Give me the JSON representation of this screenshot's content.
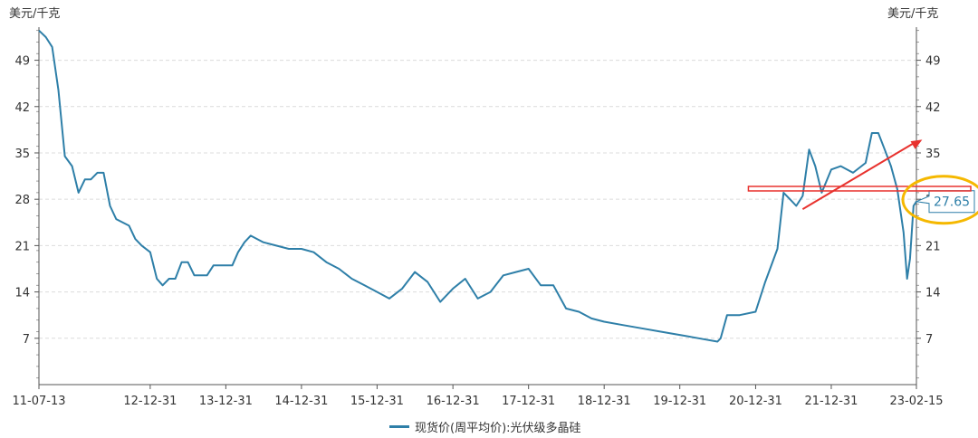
{
  "chart_data": {
    "type": "line",
    "y_unit_left": "美元/千克",
    "y_unit_right": "美元/千克",
    "ylim": [
      0,
      54
    ],
    "yticks": [
      7,
      14,
      21,
      28,
      35,
      42,
      49
    ],
    "grid": true,
    "x_tick_labels": [
      "11-07-13",
      "12-12-31",
      "13-12-31",
      "14-12-31",
      "15-12-31",
      "16-12-31",
      "17-12-31",
      "18-12-31",
      "19-12-31",
      "20-12-31",
      "21-12-31",
      "23-02-15"
    ],
    "legend_position": "bottom",
    "series": [
      {
        "name": "现货价(周平均价):光伏级多晶硅",
        "color": "#2e7fa8",
        "points": [
          [
            "11-07-13",
            53.5
          ],
          [
            "11-08-15",
            52.5
          ],
          [
            "11-09-15",
            51.0
          ],
          [
            "11-10-15",
            44.5
          ],
          [
            "11-11-15",
            34.5
          ],
          [
            "11-12-20",
            33.0
          ],
          [
            "12-01-20",
            29.0
          ],
          [
            "12-02-20",
            31.0
          ],
          [
            "12-03-20",
            31.0
          ],
          [
            "12-04-20",
            32.0
          ],
          [
            "12-05-20",
            32.0
          ],
          [
            "12-06-20",
            27.0
          ],
          [
            "12-07-20",
            25.0
          ],
          [
            "12-08-20",
            24.5
          ],
          [
            "12-09-20",
            24.0
          ],
          [
            "12-10-20",
            22.0
          ],
          [
            "12-11-20",
            21.0
          ],
          [
            "12-12-31",
            20.0
          ],
          [
            "13-02-01",
            16.0
          ],
          [
            "13-03-01",
            15.0
          ],
          [
            "13-04-01",
            16.0
          ],
          [
            "13-05-01",
            16.0
          ],
          [
            "13-06-01",
            18.5
          ],
          [
            "13-07-01",
            18.5
          ],
          [
            "13-08-01",
            16.5
          ],
          [
            "13-09-01",
            16.5
          ],
          [
            "13-10-01",
            16.5
          ],
          [
            "13-11-01",
            18.0
          ],
          [
            "13-12-01",
            18.0
          ],
          [
            "13-12-31",
            18.0
          ],
          [
            "14-01-31",
            18.0
          ],
          [
            "14-02-28",
            20.0
          ],
          [
            "14-03-31",
            21.5
          ],
          [
            "14-04-30",
            22.5
          ],
          [
            "14-05-31",
            22.0
          ],
          [
            "14-06-30",
            21.5
          ],
          [
            "14-08-31",
            21.0
          ],
          [
            "14-10-31",
            20.5
          ],
          [
            "14-12-31",
            20.5
          ],
          [
            "15-02-28",
            20.0
          ],
          [
            "15-04-30",
            18.5
          ],
          [
            "15-06-30",
            17.5
          ],
          [
            "15-08-31",
            16.0
          ],
          [
            "15-10-31",
            15.0
          ],
          [
            "15-12-31",
            14.0
          ],
          [
            "16-02-28",
            13.0
          ],
          [
            "16-04-30",
            14.5
          ],
          [
            "16-06-30",
            17.0
          ],
          [
            "16-08-31",
            15.5
          ],
          [
            "16-10-31",
            12.5
          ],
          [
            "16-12-31",
            14.5
          ],
          [
            "17-02-28",
            16.0
          ],
          [
            "17-04-30",
            13.0
          ],
          [
            "17-06-30",
            14.0
          ],
          [
            "17-08-31",
            16.5
          ],
          [
            "17-10-31",
            17.0
          ],
          [
            "17-12-31",
            17.5
          ],
          [
            "18-02-28",
            15.0
          ],
          [
            "18-04-30",
            15.0
          ],
          [
            "18-06-30",
            11.5
          ],
          [
            "18-08-31",
            11.0
          ],
          [
            "18-10-31",
            10.0
          ],
          [
            "18-12-31",
            9.5
          ],
          [
            "19-03-31",
            9.0
          ],
          [
            "19-06-30",
            8.5
          ],
          [
            "19-09-30",
            8.0
          ],
          [
            "19-12-31",
            7.5
          ],
          [
            "20-03-31",
            7.0
          ],
          [
            "20-06-30",
            6.5
          ],
          [
            "20-07-15",
            7.0
          ],
          [
            "20-08-15",
            10.5
          ],
          [
            "20-10-15",
            10.5
          ],
          [
            "20-12-31",
            11.0
          ],
          [
            "21-02-15",
            15.5
          ],
          [
            "21-04-15",
            20.5
          ],
          [
            "21-05-15",
            29.0
          ],
          [
            "21-06-15",
            28.0
          ],
          [
            "21-07-15",
            27.0
          ],
          [
            "21-08-15",
            28.5
          ],
          [
            "21-09-15",
            35.5
          ],
          [
            "21-10-15",
            33.0
          ],
          [
            "21-11-15",
            29.0
          ],
          [
            "21-12-31",
            32.5
          ],
          [
            "22-02-15",
            33.0
          ],
          [
            "22-04-15",
            32.0
          ],
          [
            "22-06-15",
            33.5
          ],
          [
            "22-07-15",
            38.0
          ],
          [
            "22-08-15",
            38.0
          ],
          [
            "22-09-15",
            35.5
          ],
          [
            "22-10-15",
            33.0
          ],
          [
            "22-11-15",
            29.5
          ],
          [
            "22-12-15",
            23.0
          ],
          [
            "23-01-01",
            16.0
          ],
          [
            "23-01-15",
            19.0
          ],
          [
            "23-02-01",
            27.0
          ],
          [
            "23-02-15",
            27.65
          ]
        ]
      }
    ],
    "annotations": [
      {
        "type": "callout",
        "text": "27.65",
        "at": [
          "23-02-15",
          27.65
        ]
      },
      {
        "type": "horizontal-band",
        "y": 29.6,
        "from": "20-12-31",
        "to": "23-02-15",
        "color": "#e8322e"
      },
      {
        "type": "arrow",
        "from": [
          "21-08-15",
          26.5
        ],
        "to": [
          "23-03-15",
          37.0
        ],
        "color": "#e8322e"
      },
      {
        "type": "ellipse-highlight",
        "around": [
          "23-02-15",
          27.65
        ],
        "color": "#f5b800"
      }
    ]
  }
}
